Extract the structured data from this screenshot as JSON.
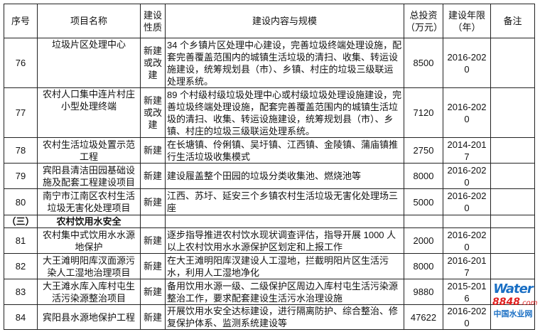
{
  "headers": {
    "no": "序号",
    "name": "项目名称",
    "nature": "建设性质",
    "content": "建设内容与规模",
    "invest": "总投资（万元）",
    "period": "建设年限（年）",
    "remark": "备注"
  },
  "rows": [
    {
      "no": "76",
      "name": "垃圾片区处理中心",
      "nature": "新建或改建",
      "content": "34 个乡镇片区处理中心建设，完善垃圾终端处理设施，配套完善覆盖范围内的城镇生活垃圾的清扫、收集、转运设施建设，统筹规划县（市）、乡镇、村庄的垃圾三级联运处理系统。",
      "invest": "8500",
      "period": "2016-2020",
      "remark": ""
    },
    {
      "no": "77",
      "name": "农村人口集中连片村庄小型处理终端",
      "nature": "新建或改建",
      "content": "89 个村级村级垃圾处理中心或村级垃圾处理设施建设，完善垃圾终端处理设施，配套完善覆盖范围内的城镇生活垃圾的清扫、收集、转运设施建设，统筹规划县（市）、乡镇、村庄的垃圾三级联运处理系统。",
      "invest": "7120",
      "period": "2016-2020",
      "remark": ""
    },
    {
      "no": "78",
      "name": "农村生活垃圾处置示范工程",
      "nature": "新建",
      "content": "在长塘镇、伶俐镇、吴圩镇、江西镇、金陵镇、蒲庙镇推行生活垃圾收集模式",
      "invest": "2750",
      "period": "2014-2017",
      "remark": ""
    },
    {
      "no": "79",
      "name": "宾阳县清洁田园基础设施及配套工程建设项目",
      "nature": "新建",
      "content": "建设履盖整个田园的垃圾分类收集池、燃烧池等",
      "invest": "8000",
      "period": "2016-2020",
      "remark": ""
    },
    {
      "no": "80",
      "name": "南宁市江南区农村生活垃圾无害化处理项目",
      "nature": "新建",
      "content": "江西、苏圩、延安三个乡镇农村生活垃圾无害化处理场三座",
      "invest": "5000",
      "period": "2016-2020",
      "remark": ""
    }
  ],
  "section": {
    "no": "（三）",
    "name": "农村饮用水安全"
  },
  "rows2": [
    {
      "no": "81",
      "name": "农村集中式饮用水水源地保护",
      "nature": "新建",
      "content": "逐步指导推进农村饮水现状调查评估，指导开展 1000 人以上农村饮用水水源保护区划定和上报工作",
      "invest": "2000",
      "period": "2016-2020",
      "remark": ""
    },
    {
      "no": "82",
      "name": "大王滩明阳库汊面源污染人工湿地治理项目",
      "nature": "新建",
      "content": "在大王滩明阳库汊建设人工湿地，拦截明阳片区生活污水，利用人工湿地净化",
      "invest": "8000",
      "period": "2016-2017",
      "remark": ""
    },
    {
      "no": "83",
      "name": "大王滩水库入库村屯生活污染源整治项目",
      "nature": "新建",
      "content": "备用饮用水源一级、二级保护区周边入库村屯生活污染源整治工作，要求配套建设生活污水治理设施",
      "invest": "9880",
      "period": "2015-2016",
      "remark": ""
    },
    {
      "no": "84",
      "name": "宾阳县水源地保护工程",
      "nature": "新建",
      "content": "开展饮用水安全达标建设，进行隔离防护、综合整治、修复保护体系、监测系统建设等",
      "invest": "47622",
      "period": "2016-2020",
      "remark": ""
    }
  ],
  "watermark": {
    "brand": "Water",
    "num": "8848",
    "domain": ".com",
    "cn": "中国水业网"
  }
}
